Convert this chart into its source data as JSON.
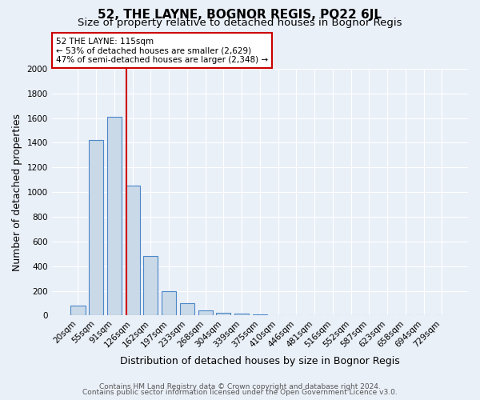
{
  "title": "52, THE LAYNE, BOGNOR REGIS, PO22 6JL",
  "subtitle": "Size of property relative to detached houses in Bognor Regis",
  "xlabel": "Distribution of detached houses by size in Bognor Regis",
  "ylabel": "Number of detached properties",
  "footnote1": "Contains HM Land Registry data © Crown copyright and database right 2024.",
  "footnote2": "Contains public sector information licensed under the Open Government Licence v3.0.",
  "bin_labels": [
    "20sqm",
    "55sqm",
    "91sqm",
    "126sqm",
    "162sqm",
    "197sqm",
    "233sqm",
    "268sqm",
    "304sqm",
    "339sqm",
    "375sqm",
    "410sqm",
    "446sqm",
    "481sqm",
    "516sqm",
    "552sqm",
    "587sqm",
    "623sqm",
    "658sqm",
    "694sqm",
    "729sqm"
  ],
  "bar_values": [
    80,
    1420,
    1610,
    1050,
    480,
    200,
    100,
    45,
    25,
    15,
    10,
    5,
    0,
    0,
    0,
    0,
    0,
    0,
    0,
    0,
    0
  ],
  "bar_color": "#c9d9e8",
  "bar_edge_color": "#4a86c8",
  "red_line_idx": 3,
  "red_line_color": "#cc0000",
  "annotation_text": "52 THE LAYNE: 115sqm\n← 53% of detached houses are smaller (2,629)\n47% of semi-detached houses are larger (2,348) →",
  "annotation_box_facecolor": "#ffffff",
  "annotation_box_edgecolor": "#cc0000",
  "ylim": [
    0,
    2000
  ],
  "yticks": [
    0,
    200,
    400,
    600,
    800,
    1000,
    1200,
    1400,
    1600,
    1800,
    2000
  ],
  "bg_color": "#eaf0f8",
  "grid_color": "#ffffff",
  "title_fontsize": 11,
  "subtitle_fontsize": 9.5,
  "axis_label_fontsize": 9,
  "tick_fontsize": 7.5,
  "footnote_fontsize": 6.5
}
